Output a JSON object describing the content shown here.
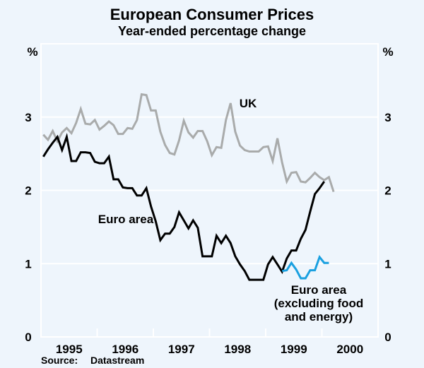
{
  "chart_data": {
    "type": "line",
    "title": "European Consumer Prices",
    "subtitle": "Year-ended percentage change",
    "ylabel_left": "%",
    "ylabel_right": "%",
    "ylim": [
      0,
      4
    ],
    "yticks": [
      0,
      1,
      2,
      3
    ],
    "ytick_labels": [
      "0",
      "1",
      "2",
      "3"
    ],
    "xlim": [
      "1995-01",
      "2000-12"
    ],
    "xtick_labels": [
      "1995",
      "1996",
      "1997",
      "1998",
      "1999",
      "2000"
    ],
    "grid": true,
    "frequency": "monthly",
    "series": [
      {
        "name": "UK",
        "label": "UK",
        "color": "#a9abab",
        "start": "1995-01",
        "values": [
          2.76,
          2.69,
          2.81,
          2.67,
          2.79,
          2.85,
          2.78,
          2.92,
          3.11,
          2.91,
          2.9,
          2.96,
          2.83,
          2.88,
          2.94,
          2.89,
          2.77,
          2.77,
          2.85,
          2.84,
          2.96,
          3.31,
          3.3,
          3.09,
          3.09,
          2.8,
          2.62,
          2.51,
          2.49,
          2.68,
          2.95,
          2.79,
          2.72,
          2.81,
          2.81,
          2.67,
          2.48,
          2.59,
          2.58,
          2.96,
          3.19,
          2.8,
          2.61,
          2.55,
          2.53,
          2.53,
          2.53,
          2.59,
          2.6,
          2.4,
          2.71,
          2.38,
          2.12,
          2.24,
          2.25,
          2.12,
          2.11,
          2.17,
          2.24,
          2.18,
          2.14,
          2.18,
          1.98
        ]
      },
      {
        "name": "Euro area",
        "label": "Euro area",
        "color": "#000000",
        "start": "1995-01",
        "values": [
          2.46,
          2.56,
          2.65,
          2.73,
          2.55,
          2.73,
          2.4,
          2.4,
          2.52,
          2.52,
          2.51,
          2.39,
          2.37,
          2.37,
          2.46,
          2.15,
          2.15,
          2.04,
          2.03,
          2.03,
          1.93,
          1.93,
          2.03,
          1.78,
          1.58,
          1.32,
          1.41,
          1.41,
          1.5,
          1.7,
          1.59,
          1.48,
          1.59,
          1.49,
          1.1,
          1.1,
          1.1,
          1.38,
          1.28,
          1.38,
          1.28,
          1.1,
          0.99,
          0.9,
          0.78,
          0.78,
          0.78,
          0.78,
          0.99,
          1.09,
          0.99,
          0.89,
          1.07,
          1.18,
          1.18,
          1.34,
          1.46,
          1.71,
          1.95,
          2.03,
          2.12
        ]
      },
      {
        "name": "Euro area (excluding food and energy)",
        "label": "Euro area (excluding food and energy)",
        "color": "#1aa0e0",
        "start": "1999-04",
        "values": [
          0.9,
          0.91,
          1.01,
          0.92,
          0.8,
          0.8,
          0.91,
          0.91,
          1.09,
          1.01,
          1.01
        ]
      }
    ],
    "annotations": [
      {
        "series": "UK",
        "lines": [
          "UK"
        ],
        "near": "1998-04",
        "value": 3.2
      },
      {
        "series": "Euro area",
        "lines": [
          "Euro area"
        ],
        "near": "1996-06",
        "value": 1.6
      },
      {
        "series": "Euro area (excluding food and energy)",
        "lines": [
          "Euro area",
          "(excluding food",
          "and energy)"
        ],
        "near": "1999-11",
        "value": 0.6
      }
    ],
    "source": {
      "label": "Source:",
      "value": "Datastream"
    }
  }
}
